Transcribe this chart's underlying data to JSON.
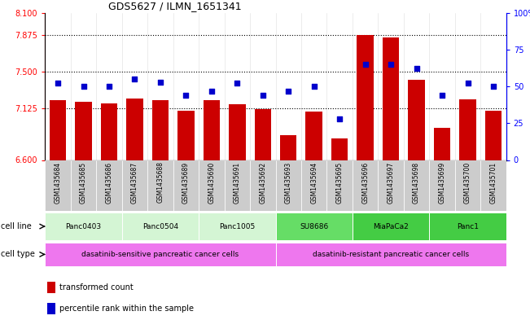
{
  "title": "GDS5627 / ILMN_1651341",
  "samples": [
    "GSM1435684",
    "GSM1435685",
    "GSM1435686",
    "GSM1435687",
    "GSM1435688",
    "GSM1435689",
    "GSM1435690",
    "GSM1435691",
    "GSM1435692",
    "GSM1435693",
    "GSM1435694",
    "GSM1435695",
    "GSM1435696",
    "GSM1435697",
    "GSM1435698",
    "GSM1435699",
    "GSM1435700",
    "GSM1435701"
  ],
  "bar_values": [
    7.21,
    7.19,
    7.18,
    7.23,
    7.21,
    7.1,
    7.21,
    7.17,
    7.12,
    6.85,
    7.09,
    6.82,
    7.87,
    7.85,
    7.42,
    6.93,
    7.22,
    7.1
  ],
  "dot_values": [
    52,
    50,
    50,
    55,
    53,
    44,
    47,
    52,
    44,
    47,
    50,
    28,
    65,
    65,
    62,
    44,
    52,
    50
  ],
  "ylim_left": [
    6.6,
    8.1
  ],
  "ylim_right": [
    0,
    100
  ],
  "yticks_left": [
    6.6,
    7.125,
    7.5,
    7.875,
    8.1
  ],
  "yticks_right": [
    0,
    25,
    50,
    75,
    100
  ],
  "hlines": [
    7.125,
    7.5,
    7.875
  ],
  "bar_color": "#cc0000",
  "dot_color": "#0000cc",
  "bar_bottom": 6.6,
  "cell_lines": [
    {
      "label": "Panc0403",
      "start": 0,
      "end": 3
    },
    {
      "label": "Panc0504",
      "start": 3,
      "end": 6
    },
    {
      "label": "Panc1005",
      "start": 6,
      "end": 9
    },
    {
      "label": "SU8686",
      "start": 9,
      "end": 12
    },
    {
      "label": "MiaPaCa2",
      "start": 12,
      "end": 15
    },
    {
      "label": "Panc1",
      "start": 15,
      "end": 18
    }
  ],
  "cell_line_colors": [
    "#d4f5d4",
    "#d4f5d4",
    "#d4f5d4",
    "#66dd66",
    "#44cc44",
    "#44cc44"
  ],
  "cell_types": [
    {
      "label": "dasatinib-sensitive pancreatic cancer cells",
      "start": 0,
      "end": 9
    },
    {
      "label": "dasatinib-resistant pancreatic cancer cells",
      "start": 9,
      "end": 18
    }
  ],
  "cell_type_color": "#ee77ee",
  "legend_items": [
    {
      "label": "transformed count",
      "color": "#cc0000"
    },
    {
      "label": "percentile rank within the sample",
      "color": "#0000cc"
    }
  ],
  "bg_color": "#ffffff",
  "sample_bg_color": "#cccccc"
}
